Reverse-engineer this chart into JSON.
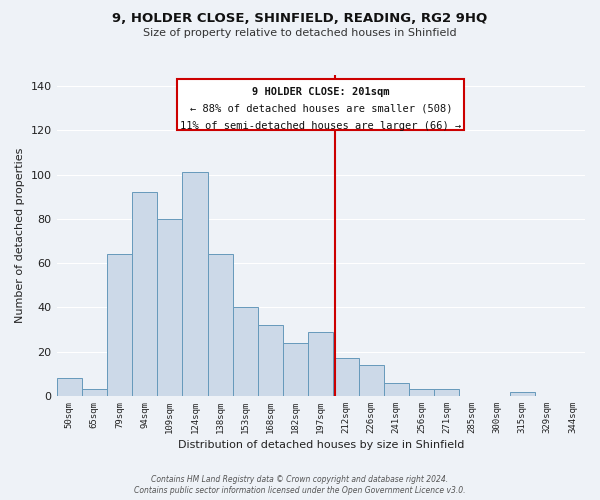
{
  "title": "9, HOLDER CLOSE, SHINFIELD, READING, RG2 9HQ",
  "subtitle": "Size of property relative to detached houses in Shinfield",
  "xlabel": "Distribution of detached houses by size in Shinfield",
  "ylabel": "Number of detached properties",
  "bar_labels": [
    "50sqm",
    "65sqm",
    "79sqm",
    "94sqm",
    "109sqm",
    "124sqm",
    "138sqm",
    "153sqm",
    "168sqm",
    "182sqm",
    "197sqm",
    "212sqm",
    "226sqm",
    "241sqm",
    "256sqm",
    "271sqm",
    "285sqm",
    "300sqm",
    "315sqm",
    "329sqm",
    "344sqm"
  ],
  "bar_values": [
    8,
    3,
    64,
    92,
    80,
    101,
    64,
    40,
    32,
    24,
    29,
    17,
    14,
    6,
    3,
    3,
    0,
    0,
    2,
    0,
    0
  ],
  "bar_color": "#ccd9e8",
  "bar_edgecolor": "#6699bb",
  "vline_x": 10.57,
  "vline_color": "#cc0000",
  "annotation_line1": "9 HOLDER CLOSE: 201sqm",
  "annotation_line2": "← 88% of detached houses are smaller (508)",
  "annotation_line3": "11% of semi-detached houses are larger (66) →",
  "annotation_box_edgecolor": "#cc0000",
  "annotation_bg_color": "#ffffff",
  "ylim": [
    0,
    145
  ],
  "yticks": [
    0,
    20,
    40,
    60,
    80,
    100,
    120,
    140
  ],
  "bg_color": "#eef2f7",
  "grid_color": "#ffffff",
  "footer_line1": "Contains HM Land Registry data © Crown copyright and database right 2024.",
  "footer_line2": "Contains public sector information licensed under the Open Government Licence v3.0."
}
